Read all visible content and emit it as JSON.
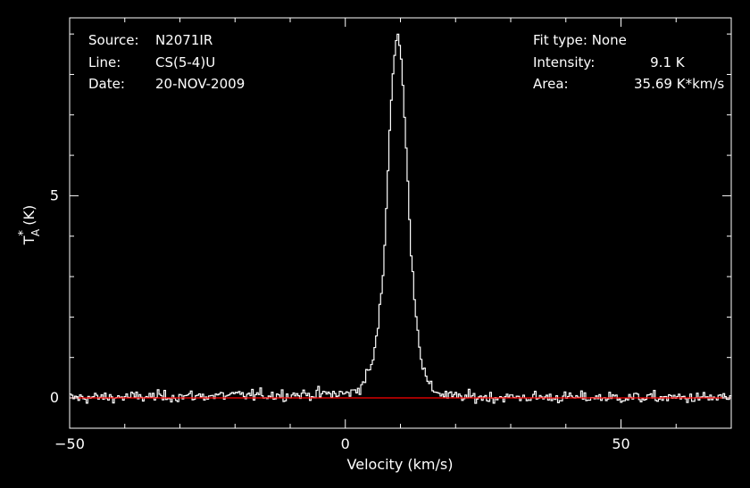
{
  "header_left": {
    "source_key": "Source:",
    "source_val": "N2071IR",
    "line_key": "Line:",
    "line_val": "CS(5-4)U",
    "date_key": "Date:",
    "date_val": "20-NOV-2009"
  },
  "header_right": {
    "fit_key": "Fit type:",
    "fit_val": "None",
    "int_key": "Intensity:",
    "int_num": "9.1",
    "int_unit": "K",
    "area_key": "Area:",
    "area_num": "35.69",
    "area_unit": "K*km/s"
  },
  "colors": {
    "background": "#000000",
    "spectrum": "#ffffff",
    "baseline": "#ff0000",
    "axes": "#ffffff"
  },
  "chart_data": {
    "type": "line",
    "xlabel": "Velocity (km/s)",
    "ylabel_main": "T",
    "ylabel_sup": "*",
    "ylabel_sub": "A",
    "ylabel_unit": "(K)",
    "xlim": [
      -50,
      70
    ],
    "ylim": [
      -0.75,
      9.4
    ],
    "xticks": [
      -50,
      0,
      50
    ],
    "yticks": [
      0,
      5
    ],
    "grid": false,
    "baseline_y": 0,
    "profile": {
      "x": [
        -50,
        0,
        1.5,
        3,
        4,
        5,
        6,
        7,
        8,
        8.8,
        9.5,
        10.2,
        11,
        12,
        13,
        14,
        15,
        16,
        17.5,
        20,
        70
      ],
      "y": [
        0,
        0.1,
        0.15,
        0.3,
        0.6,
        0.9,
        1.8,
        3.3,
        6.5,
        8.4,
        9.1,
        8.3,
        6.3,
        3.5,
        1.8,
        0.8,
        0.35,
        0.2,
        0.1,
        0.02,
        0
      ]
    },
    "noise_rms": 0.07,
    "channel_width_kms": 0.3
  }
}
